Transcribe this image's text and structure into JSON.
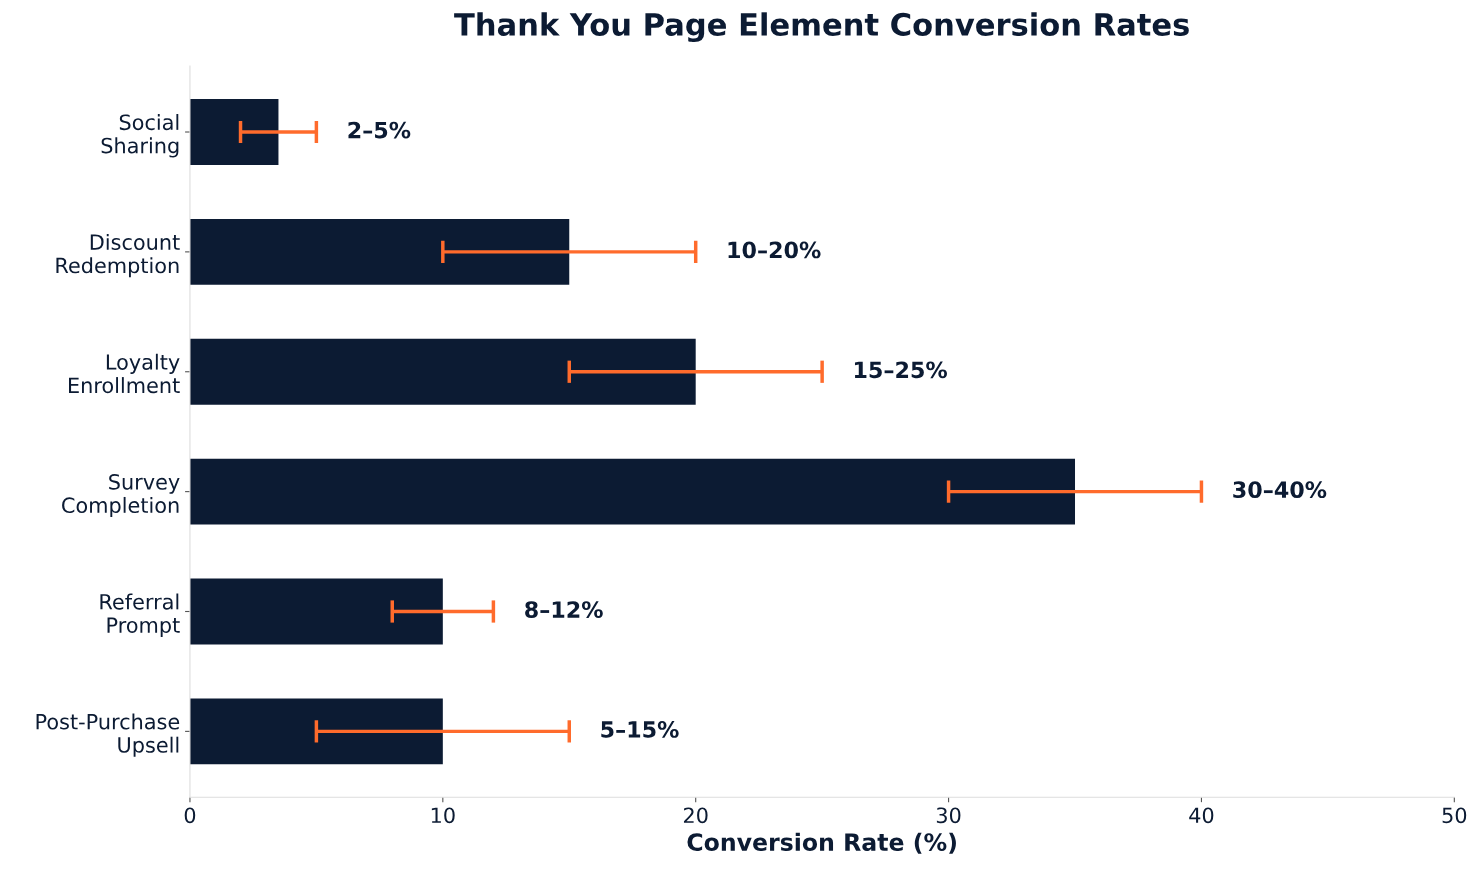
{
  "chart_data": {
    "type": "bar",
    "orientation": "horizontal",
    "title": "Thank You Page Element Conversion Rates",
    "xlabel": "Conversion Rate (%)",
    "categories": [
      "Social\nSharing",
      "Discount\nRedemption",
      "Loyalty\nEnrollment",
      "Survey\nCompletion",
      "Referral\nPrompt",
      "Post-Purchase\nUpsell"
    ],
    "series": [
      {
        "color": "#0c1b33",
        "values": [
          3.5,
          15,
          20,
          35,
          10,
          10
        ],
        "errors": [
          [
            2,
            5
          ],
          [
            10,
            20
          ],
          [
            15,
            25
          ],
          [
            30,
            40
          ],
          [
            8,
            12
          ],
          [
            5,
            15
          ]
        ]
      }
    ],
    "annotations": [
      {
        "text": "2–5%",
        "x": 5,
        "y": "Social\nSharing"
      },
      {
        "text": "10–20%",
        "x": 20,
        "y": "Discount\nRedemption"
      },
      {
        "text": "15–25%",
        "x": 25,
        "y": "Loyalty\nEnrollment"
      },
      {
        "text": "30–40%",
        "x": 40,
        "y": "Survey\nCompletion"
      },
      {
        "text": "8–12%",
        "x": 12,
        "y": "Referral\nPrompt"
      },
      {
        "text": "5–15%",
        "x": 15,
        "y": "Post-Purchase\nUpsell"
      }
    ],
    "xlim": [
      0,
      50
    ],
    "xticks": [
      0,
      10,
      20,
      30,
      40,
      50
    ],
    "grid": false,
    "legend": false
  }
}
